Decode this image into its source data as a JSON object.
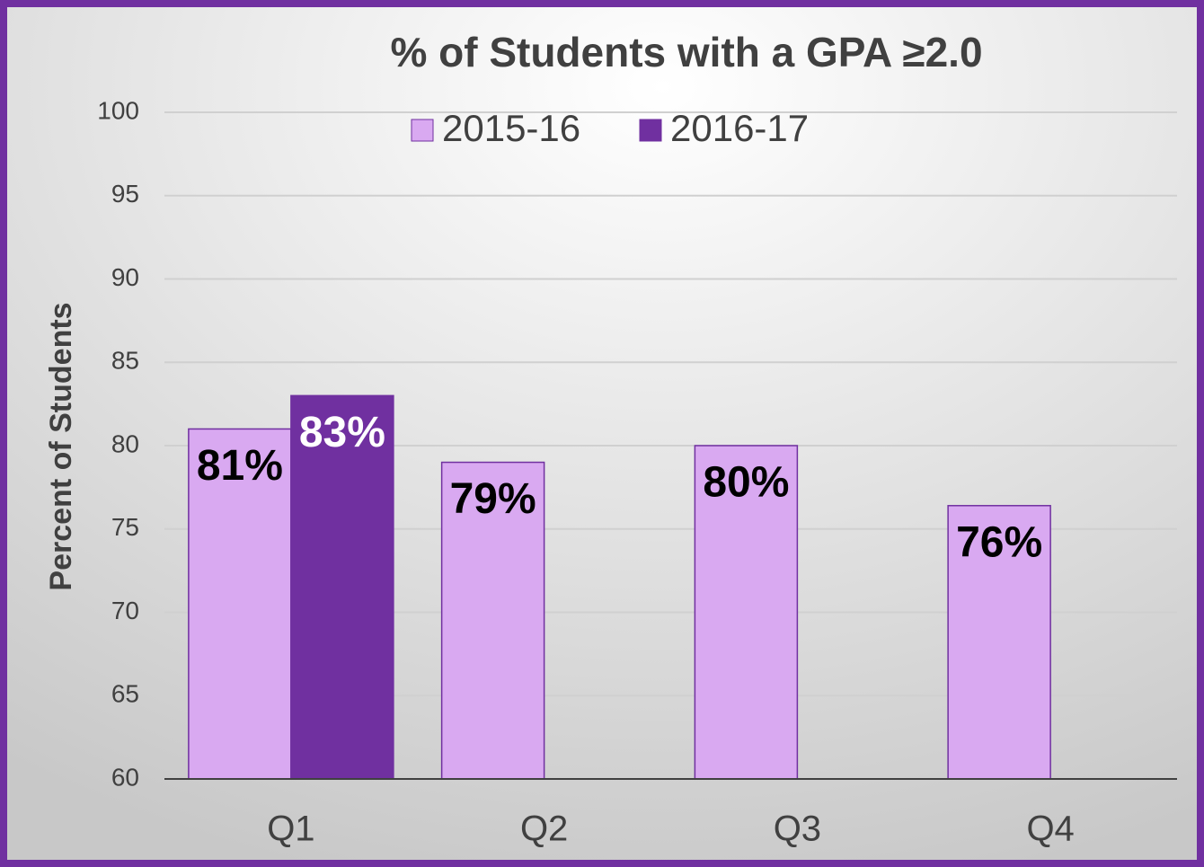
{
  "chart_data": {
    "type": "bar",
    "title": "% of Students with a GPA ≥2.0",
    "y_label": "Percent of Students",
    "categories": [
      "Q1",
      "Q2",
      "Q3",
      "Q4"
    ],
    "series": [
      {
        "name": "2015-16",
        "color": "#d9a9f1",
        "label_color": "#000000",
        "values": [
          81,
          79,
          80,
          76.4
        ],
        "value_labels": [
          "81%",
          "79%",
          "80%",
          "76%"
        ]
      },
      {
        "name": "2016-17",
        "color": "#7030a0",
        "label_color": "#ffffff",
        "values": [
          83,
          null,
          null,
          null
        ],
        "value_labels": [
          "83%",
          null,
          null,
          null
        ]
      }
    ],
    "ylim": [
      60,
      100
    ],
    "yticks": [
      60,
      65,
      70,
      75,
      80,
      85,
      90,
      95,
      100
    ],
    "grid": true,
    "legend": "top"
  }
}
